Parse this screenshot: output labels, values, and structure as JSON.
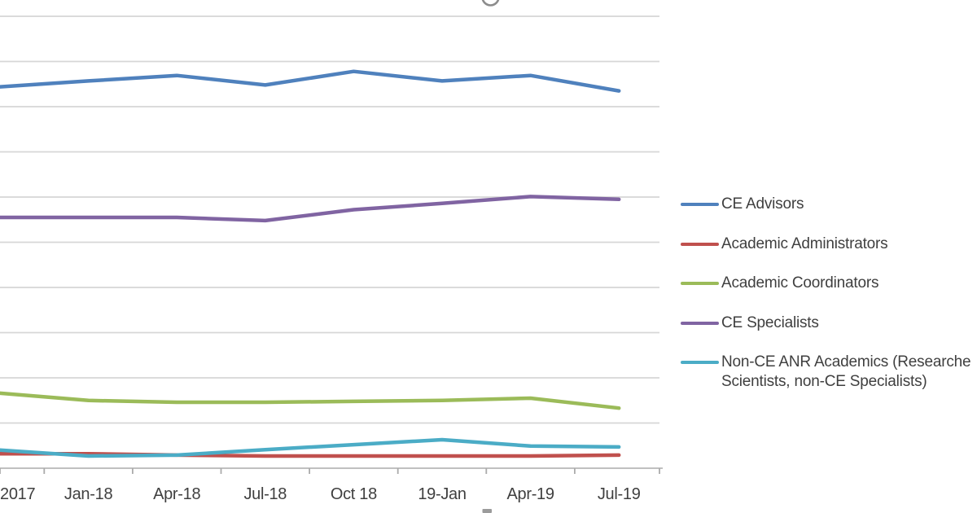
{
  "chart_data": {
    "type": "line",
    "title_note": "chart title cropped out of view; only bottom of one gray character glyph visible at top center",
    "categories": [
      "2017",
      "Jan-18",
      "Apr-18",
      "Jul-18",
      "Oct 18",
      "19-Jan",
      "Apr-19",
      "Jul-19"
    ],
    "x_axis_note": "first tick label partially cut by left image edge",
    "y_axis_note": "y-axis tick labels cropped out of view; values estimated in gridline units (1 unit = 1 horizontal gridline interval, axis baseline = 0)",
    "ylim": [
      0,
      10
    ],
    "grid": true,
    "legend_position": "right",
    "series": [
      {
        "name": "CE Advisors",
        "legend_lines": [
          "CE Advisors"
        ],
        "color": "#4F81BD",
        "values": [
          8.44,
          8.57,
          8.69,
          8.48,
          8.78,
          8.57,
          8.69,
          8.35
        ]
      },
      {
        "name": "Academic Administrators",
        "legend_lines": [
          "Academic Administrators"
        ],
        "color": "#C0504D",
        "values": [
          0.32,
          0.32,
          0.29,
          0.27,
          0.27,
          0.27,
          0.27,
          0.29
        ]
      },
      {
        "name": "Academic Coordinators",
        "legend_lines": [
          "Academic Coordinators"
        ],
        "color": "#9BBB59",
        "values": [
          1.66,
          1.5,
          1.46,
          1.46,
          1.48,
          1.5,
          1.55,
          1.33
        ]
      },
      {
        "name": "CE Specialists",
        "legend_lines": [
          "CE Specialists"
        ],
        "color": "#8064A2",
        "values": [
          5.55,
          5.55,
          5.55,
          5.48,
          5.72,
          5.86,
          6.01,
          5.95
        ]
      },
      {
        "name": "Non-CE ANR Academics (Researche Scientists, non-CE Specialists)",
        "legend_lines": [
          "Non-CE ANR Academics (Researche",
          "Scientists, non-CE Specialists)"
        ],
        "color": "#4BACC6",
        "values": [
          0.4,
          0.27,
          0.29,
          0.41,
          0.52,
          0.63,
          0.49,
          0.47
        ]
      }
    ]
  },
  "decor": {
    "top_glyph": "cropped-title-character-arc",
    "bottom_glyph": "cropped-text-mark"
  },
  "colors": {
    "background": "#FFFFFF",
    "gridline": "#D6D6D6",
    "axis": "#B7B7B7",
    "tick": "#ABABAB",
    "text": "#3F3F3F",
    "title_glyph": "#8C8C8C",
    "bottom_mark": "#9B9B9B"
  }
}
